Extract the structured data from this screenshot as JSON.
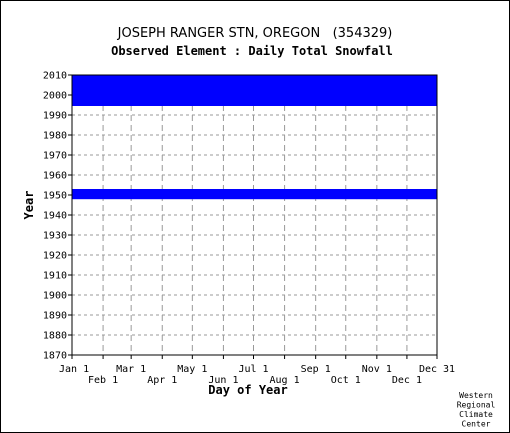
{
  "chart_data": {
    "type": "heatmap",
    "title": "JOSEPH RANGER STN, OREGON   (354329)",
    "subtitle": "Observed Element : Daily Total Snowfall",
    "xlabel": "Day of Year",
    "ylabel": "Year",
    "ylim": [
      1870,
      2010
    ],
    "xlim": [
      1,
      365
    ],
    "y_ticks": [
      1870,
      1880,
      1890,
      1900,
      1910,
      1920,
      1930,
      1940,
      1950,
      1960,
      1970,
      1980,
      1990,
      2000,
      2010
    ],
    "x_ticks": [
      {
        "label": "Jan 1",
        "day": 1
      },
      {
        "label": "Feb 1",
        "day": 32
      },
      {
        "label": "Mar 1",
        "day": 60
      },
      {
        "label": "Apr 1",
        "day": 91
      },
      {
        "label": "May 1",
        "day": 121
      },
      {
        "label": "Jun 1",
        "day": 152
      },
      {
        "label": "Jul 1",
        "day": 182
      },
      {
        "label": "Aug 1",
        "day": 213
      },
      {
        "label": "Sep 1",
        "day": 244
      },
      {
        "label": "Oct 1",
        "day": 274
      },
      {
        "label": "Nov 1",
        "day": 305
      },
      {
        "label": "Dec 1",
        "day": 335
      },
      {
        "label": "Dec 31",
        "day": 365
      }
    ],
    "grid": true,
    "data_color": "#0000ff",
    "series": [
      {
        "start_day": 1,
        "end_day": 365,
        "start_year": 1947.9,
        "end_year": 1953.0
      },
      {
        "start_day": 1,
        "end_day": 365,
        "start_year": 1994.5,
        "end_year": 2010.0
      }
    ]
  },
  "credit": [
    "Western",
    "Regional",
    "Climate",
    "Center"
  ]
}
